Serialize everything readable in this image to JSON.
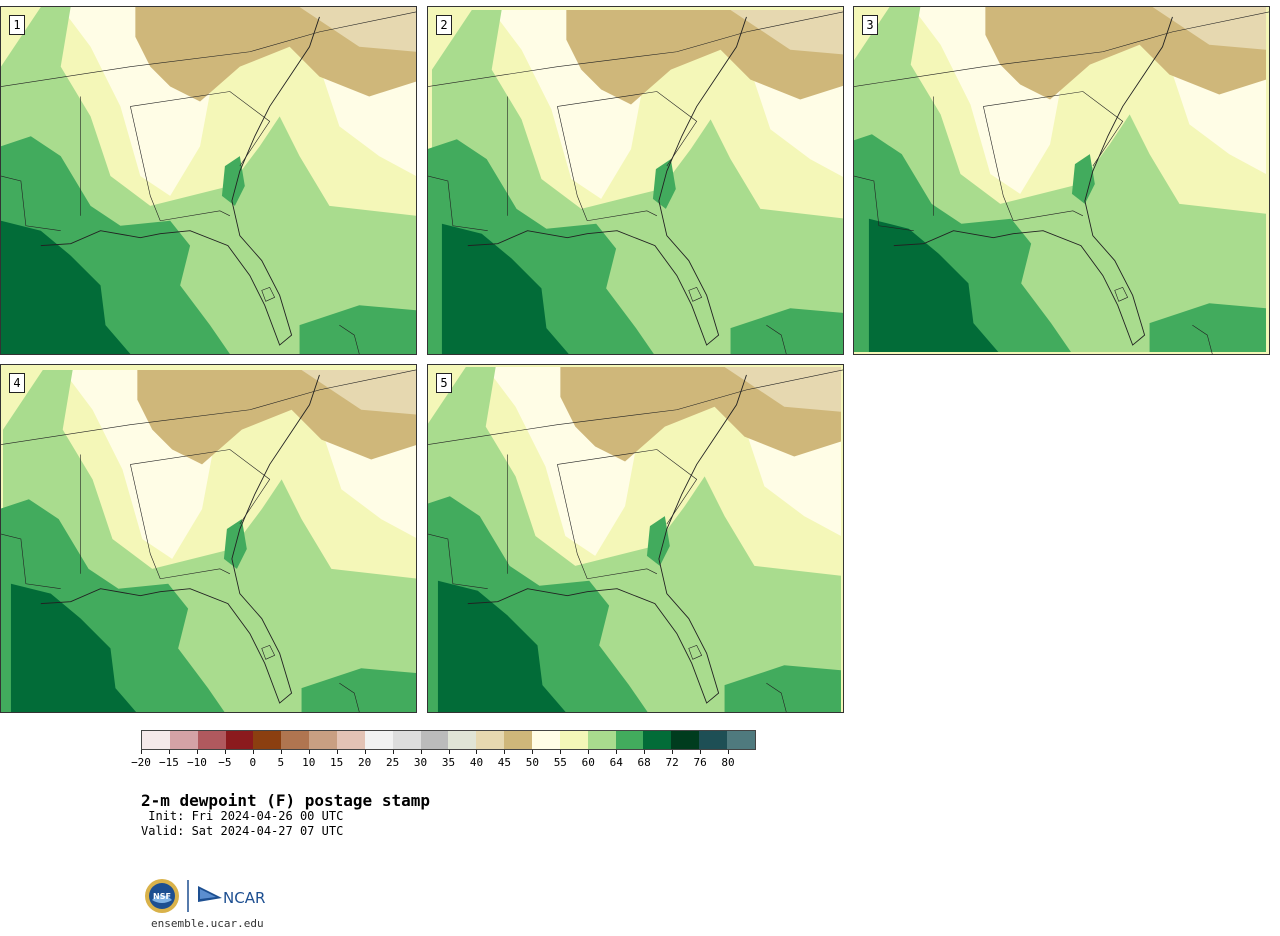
{
  "panels": [
    {
      "label": "1",
      "variant": 0
    },
    {
      "label": "2",
      "variant": 1
    },
    {
      "label": "3",
      "variant": 2
    },
    {
      "label": "4",
      "variant": 3
    },
    {
      "label": "5",
      "variant": 4
    }
  ],
  "colorbar": {
    "colors": [
      "#f5e9ea",
      "#d4a2a6",
      "#b0595e",
      "#8b1a1d",
      "#8b3f10",
      "#b07550",
      "#c99f82",
      "#e3c3b5",
      "#f2f2f2",
      "#dddddd",
      "#bbbbbb",
      "#e0e4d6",
      "#e6d8b0",
      "#cfb77a",
      "#fffde6",
      "#f4f7b8",
      "#a9dc8e",
      "#42ab5d",
      "#026c38",
      "#003c1e",
      "#1e4f55",
      "#4f7a7e"
    ],
    "ticks": [
      "−20",
      "−15",
      "−10",
      "−5",
      "0",
      "5",
      "10",
      "15",
      "20",
      "25",
      "30",
      "35",
      "40",
      "45",
      "50",
      "55",
      "60",
      "64",
      "68",
      "72",
      "76",
      "80"
    ]
  },
  "title": "2-m dewpoint (F) postage stamp",
  "init": " Init: Fri 2024-04-26 00 UTC",
  "valid": "Valid: Sat 2024-04-27 07 UTC",
  "logo": {
    "org1": "NSF",
    "org2": "NCAR"
  },
  "site": "ensemble.ucar.edu"
}
